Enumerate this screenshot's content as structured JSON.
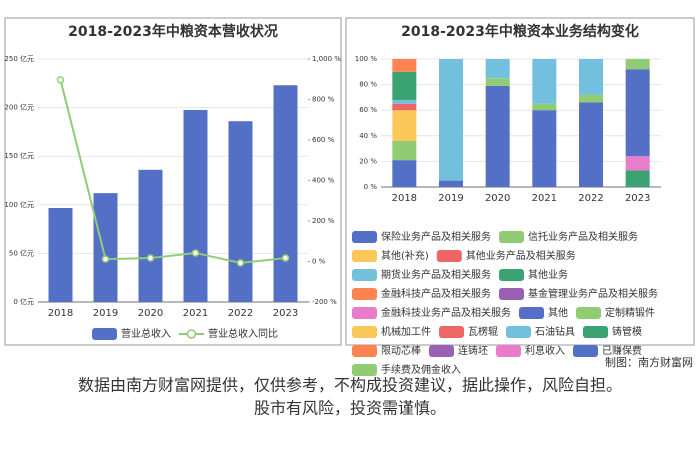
{
  "chart_data": [
    {
      "type": "bar",
      "title": "2018-2023年中粮资本营收状况",
      "categories": [
        "2018",
        "2019",
        "2020",
        "2021",
        "2022",
        "2023"
      ],
      "series": [
        {
          "name": "营业总收入",
          "color": "#5470c6",
          "values": [
            96.7,
            112,
            136,
            197.5,
            186,
            223
          ]
        },
        {
          "name": "营业总收入同比",
          "type": "line",
          "axis": "y2",
          "color": "#91cc75",
          "values": [
            897,
            12,
            17,
            42,
            -7,
            17
          ]
        }
      ],
      "ylim": [
        0,
        250
      ],
      "yticks": [
        {
          "value": 0,
          "label": "0 亿元"
        },
        {
          "value": 50,
          "label": "50 亿元"
        },
        {
          "value": 100,
          "label": "100 亿元"
        },
        {
          "value": 150,
          "label": "150 亿元"
        },
        {
          "value": 200,
          "label": "200 亿元"
        },
        {
          "value": 250,
          "label": "250 亿元"
        }
      ],
      "y2lim": [
        -200,
        1000
      ],
      "y2ticks": [
        {
          "value": -200,
          "label": "-200 %"
        },
        {
          "value": 0,
          "label": "0 %"
        },
        {
          "value": 200,
          "label": "200 %"
        },
        {
          "value": 400,
          "label": "400 %"
        },
        {
          "value": 600,
          "label": "600 %"
        },
        {
          "value": 800,
          "label": "800 %"
        },
        {
          "value": 1000,
          "label": "1,000 %"
        }
      ],
      "grid": true,
      "legend": "bottom"
    },
    {
      "type": "bar",
      "stacked": true,
      "title": "2018-2023年中粮资本业务结构变化",
      "categories": [
        "2018",
        "2019",
        "2020",
        "2021",
        "2022",
        "2023"
      ],
      "series": [
        {
          "name": "保险业务产品及相关服务",
          "color": "#5470c6",
          "values": [
            21,
            5,
            79,
            60,
            66,
            0
          ]
        },
        {
          "name": "信托业务产品及相关服务",
          "color": "#91cc75",
          "values": [
            15,
            0,
            6,
            5,
            6,
            0
          ]
        },
        {
          "name": "其他(补充)",
          "color": "#fac858",
          "values": [
            24,
            0,
            0,
            0,
            0,
            0
          ]
        },
        {
          "name": "其他业务产品及相关服务",
          "color": "#ee6666",
          "values": [
            5,
            0,
            0,
            0,
            0,
            0
          ]
        },
        {
          "name": "期货业务产品及相关服务",
          "color": "#73c0de",
          "values": [
            3,
            95,
            15,
            35,
            28,
            0
          ]
        },
        {
          "name": "其他业务",
          "color": "#3ba272",
          "values": [
            22,
            0,
            0,
            0,
            0,
            13
          ]
        },
        {
          "name": "金融科技产品及相关服务",
          "color": "#fc8452",
          "values": [
            10,
            0,
            0,
            0,
            0,
            0
          ]
        },
        {
          "name": "基金管理业务产品及相关服务",
          "color": "#9a60b4",
          "values": [
            0,
            0,
            0,
            0,
            0,
            0
          ]
        },
        {
          "name": "金融科技业务产品及相关服务",
          "color": "#ea7ccc",
          "values": [
            0,
            0,
            0,
            0,
            0,
            0
          ]
        },
        {
          "name": "其他",
          "color": "#5470c6",
          "values": [
            0,
            0,
            0,
            0,
            0,
            0
          ]
        },
        {
          "name": "定制精锻件",
          "color": "#91cc75",
          "values": [
            0,
            0,
            0,
            0,
            0,
            0
          ]
        },
        {
          "name": "机械加工件",
          "color": "#fac858",
          "values": [
            0,
            0,
            0,
            0,
            0,
            0
          ]
        },
        {
          "name": "瓦楞辊",
          "color": "#ee6666",
          "values": [
            0,
            0,
            0,
            0,
            0,
            0
          ]
        },
        {
          "name": "石油钻具",
          "color": "#73c0de",
          "values": [
            0,
            0,
            0,
            0,
            0,
            0
          ]
        },
        {
          "name": "铸管模",
          "color": "#3ba272",
          "values": [
            0,
            0,
            0,
            0,
            0,
            0
          ]
        },
        {
          "name": "限动芯棒",
          "color": "#fc8452",
          "values": [
            0,
            0,
            0,
            0,
            0,
            0
          ]
        },
        {
          "name": "连铸坯",
          "color": "#9a60b4",
          "values": [
            0,
            0,
            0,
            0,
            0,
            0
          ]
        },
        {
          "name": "利息收入",
          "color": "#ea7ccc",
          "values": [
            0,
            0,
            0,
            0,
            0,
            11
          ]
        },
        {
          "name": "已赚保费",
          "color": "#5470c6",
          "values": [
            0,
            0,
            0,
            0,
            0,
            68
          ]
        },
        {
          "name": "手续费及佣金收入",
          "color": "#91cc75",
          "values": [
            0,
            0,
            0,
            0,
            0,
            8
          ]
        }
      ],
      "ylim": [
        0,
        100
      ],
      "yticks": [
        {
          "value": 0,
          "label": "0 %"
        },
        {
          "value": 20,
          "label": "20 %"
        },
        {
          "value": 40,
          "label": "40 %"
        },
        {
          "value": 60,
          "label": "60 %"
        },
        {
          "value": 80,
          "label": "80 %"
        },
        {
          "value": 100,
          "label": "100 %"
        }
      ],
      "grid": true,
      "legend": "bottom"
    }
  ],
  "credit": "制图：南方财富网",
  "disclaimer": [
    "数据由南方财富网提供，仅供参考，不构成投资建议，据此操作，风险自担。",
    "股市有风险，投资需谨慎。"
  ]
}
